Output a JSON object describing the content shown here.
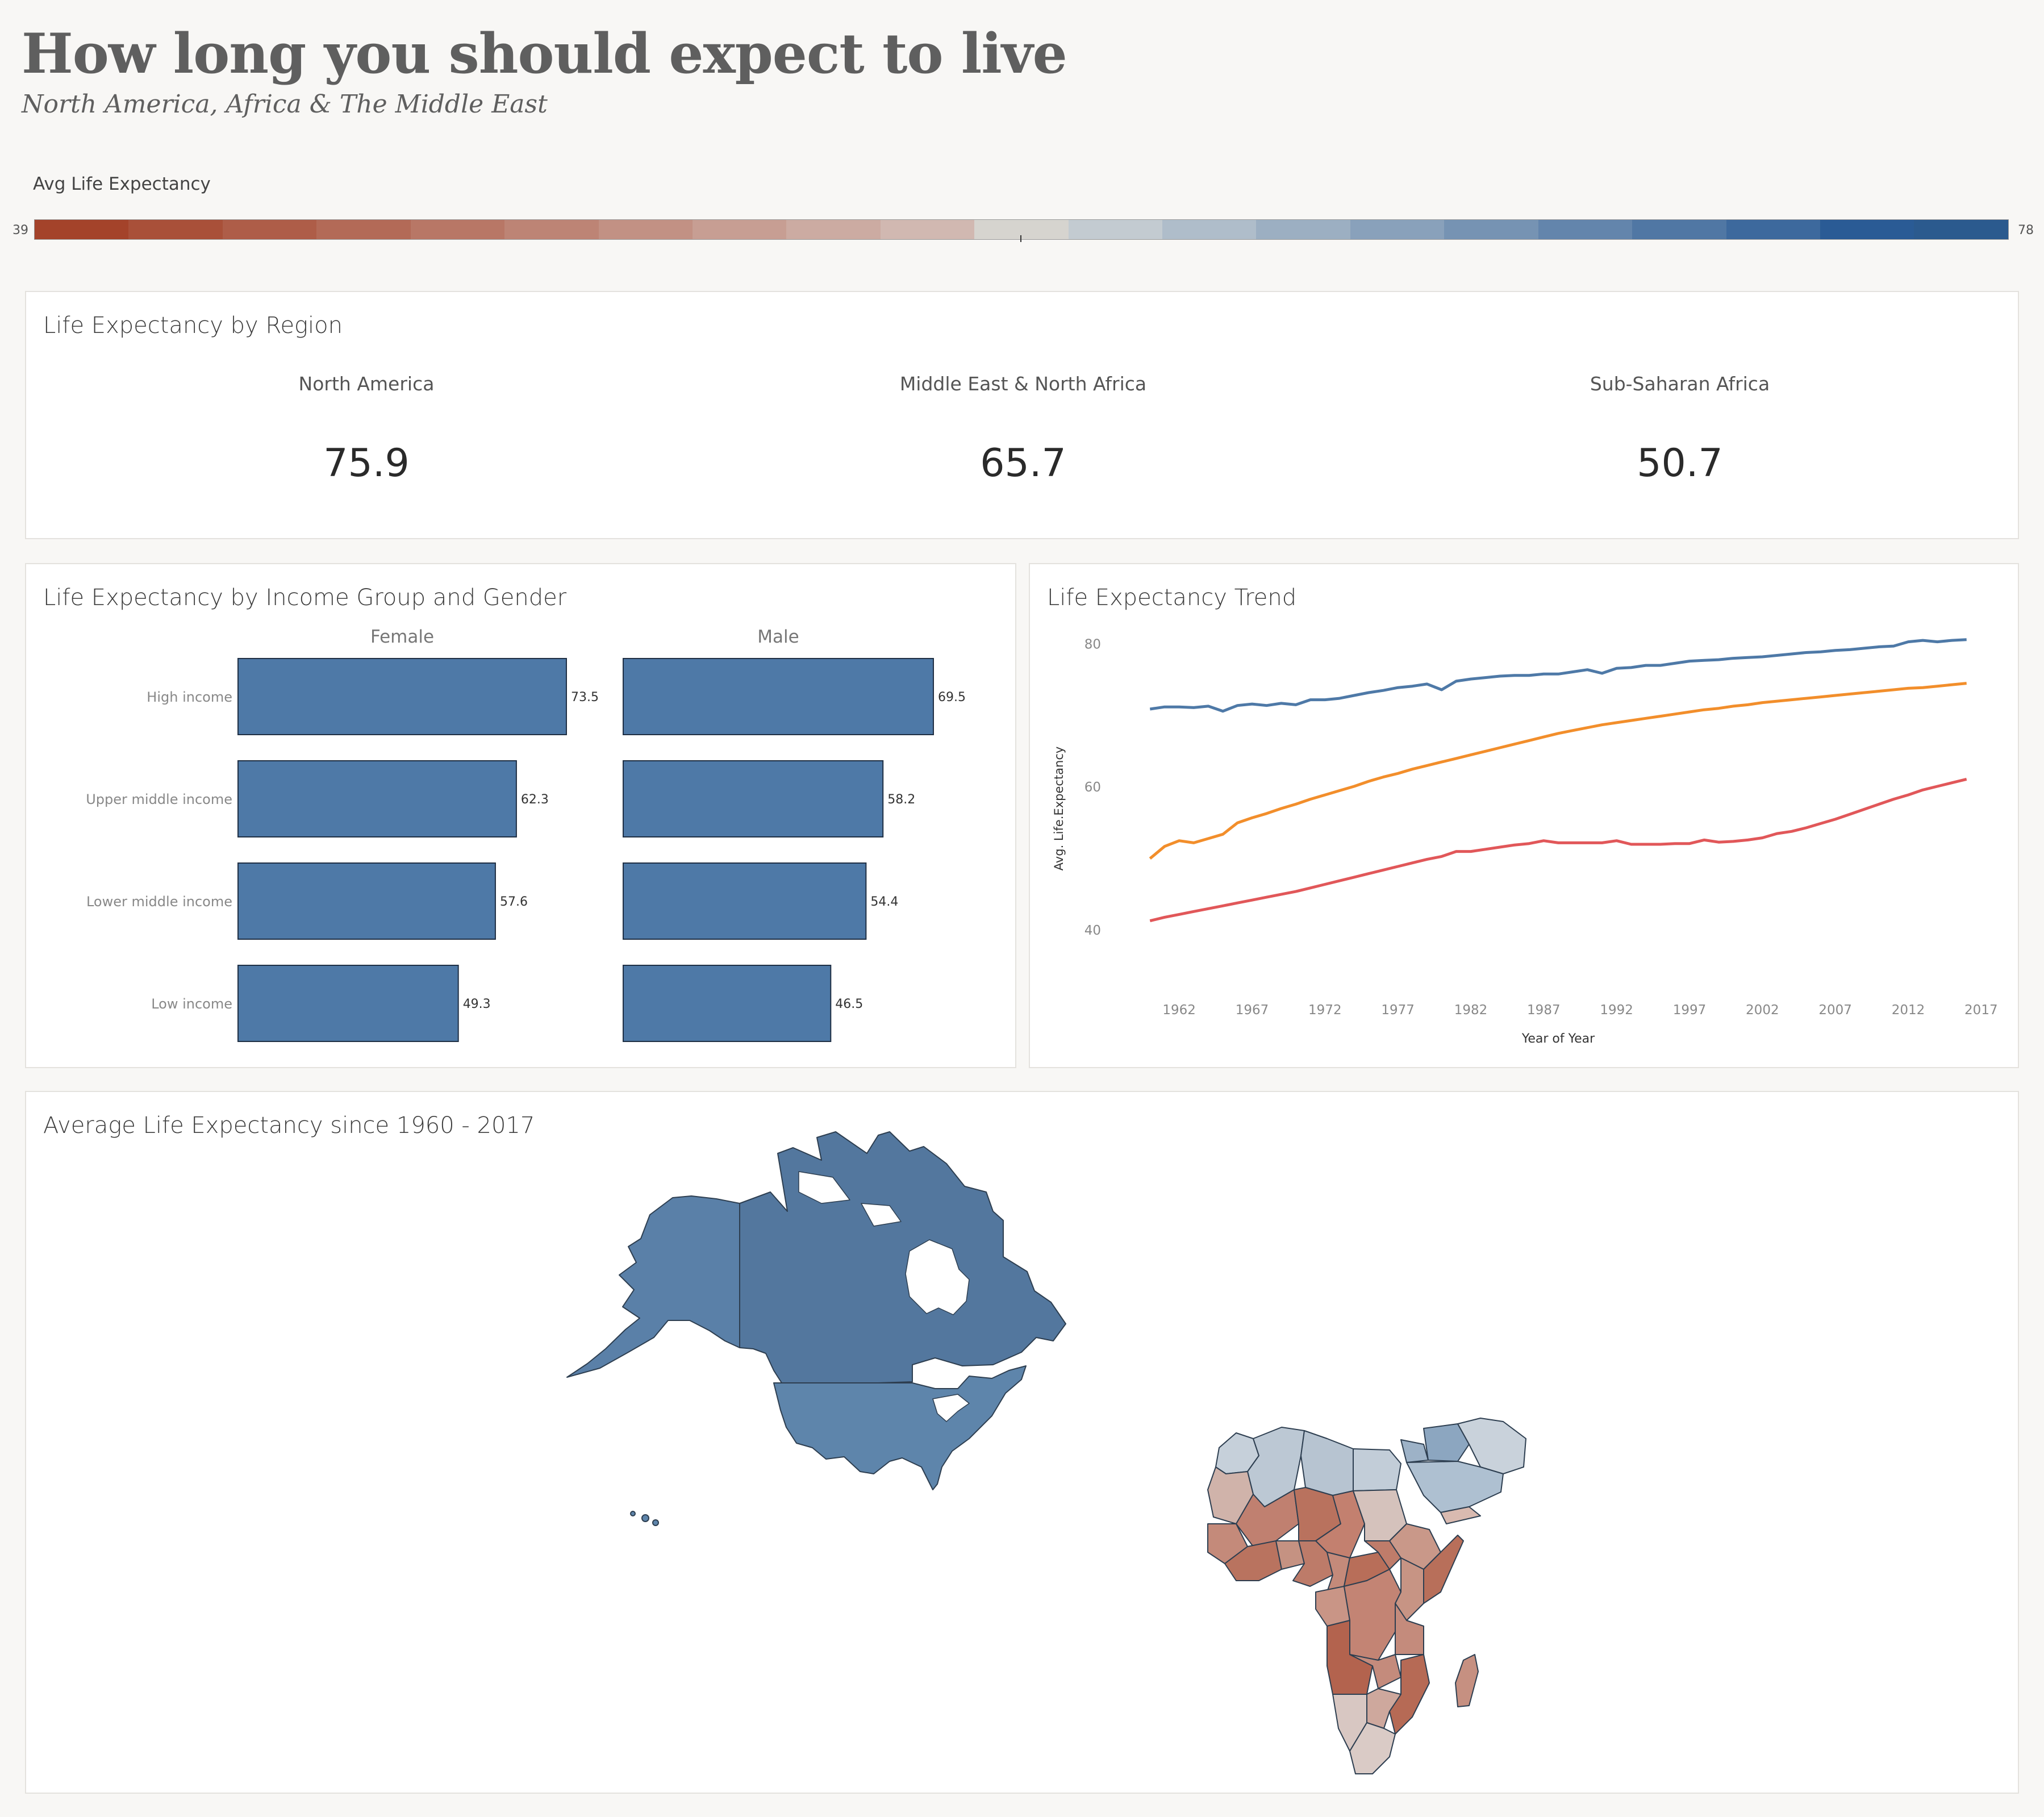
{
  "header": {
    "title": "How long you should expect to live",
    "subtitle": "North America, Africa & The Middle East"
  },
  "legend": {
    "title": "Avg Life Expectancy",
    "min": "39",
    "max": "78",
    "colors": [
      "#a4432a",
      "#a95039",
      "#ae5d48",
      "#b36a57",
      "#b87766",
      "#bd8475",
      "#c29184",
      "#c79e93",
      "#ccaba2",
      "#d1b8b1",
      "#d6d4cf",
      "#c3cbd1",
      "#afbdca",
      "#9cafc2",
      "#89a1bb",
      "#7693b3",
      "#6385ac",
      "#5077a4",
      "#3d699d",
      "#2a5b95",
      "#2b5a8e"
    ]
  },
  "kpi": {
    "title": "Life Expectancy by Region",
    "regions": [
      {
        "label": "North America",
        "value": "75.9"
      },
      {
        "label": "Middle East & North Africa",
        "value": "65.7"
      },
      {
        "label": "Sub-Saharan Africa",
        "value": "50.7"
      }
    ]
  },
  "bars_panel": {
    "title": "Life Expectancy by Income Group and Gender"
  },
  "trend_panel": {
    "title": "Life Expectancy Trend"
  },
  "map_panel": {
    "title": "Average Life Expectancy since 1960 - 2017"
  },
  "chart_data": [
    {
      "type": "bar",
      "orientation": "horizontal",
      "categories": [
        "High income",
        "Upper middle income",
        "Lower middle income",
        "Low income"
      ],
      "series": [
        {
          "name": "Female",
          "values": [
            73.5,
            62.3,
            57.6,
            49.3
          ]
        },
        {
          "name": "Male",
          "values": [
            69.5,
            58.2,
            54.4,
            46.5
          ]
        }
      ],
      "value_labels": {
        "Female": [
          "73.5",
          "62.3",
          "57.6",
          "49.3"
        ],
        "Male": [
          "69.5",
          "58.2",
          "54.4",
          "46.5"
        ]
      },
      "xlim": [
        0,
        73.5
      ],
      "bar_color": "#4e79a7"
    },
    {
      "type": "line",
      "xlabel": "Year of Year",
      "ylabel": "Avg. Life.Expectancy",
      "x_ticks": [
        "1962",
        "1967",
        "1972",
        "1977",
        "1982",
        "1987",
        "1992",
        "1997",
        "2002",
        "2007",
        "2012",
        "2017"
      ],
      "y_ticks": [
        "40",
        "60",
        "80"
      ],
      "ylim": [
        30,
        84
      ],
      "xlim": [
        1958,
        2018
      ],
      "x": [
        1960,
        1961,
        1962,
        1963,
        1964,
        1965,
        1966,
        1967,
        1968,
        1969,
        1970,
        1971,
        1972,
        1973,
        1974,
        1975,
        1976,
        1977,
        1978,
        1979,
        1980,
        1981,
        1982,
        1983,
        1984,
        1985,
        1986,
        1987,
        1988,
        1989,
        1990,
        1991,
        1992,
        1993,
        1994,
        1995,
        1996,
        1997,
        1998,
        1999,
        2000,
        2001,
        2002,
        2003,
        2004,
        2005,
        2006,
        2007,
        2008,
        2009,
        2010,
        2011,
        2012,
        2013,
        2014,
        2015,
        2016
      ],
      "series": [
        {
          "color": "#4e79a7",
          "values": [
            70.9,
            71.2,
            71.2,
            71.1,
            71.3,
            70.6,
            71.4,
            71.6,
            71.4,
            71.7,
            71.5,
            72.2,
            72.2,
            72.4,
            72.8,
            73.2,
            73.5,
            73.9,
            74.1,
            74.4,
            73.6,
            74.8,
            75.1,
            75.3,
            75.5,
            75.6,
            75.6,
            75.8,
            75.8,
            76.1,
            76.4,
            75.9,
            76.6,
            76.7,
            77.0,
            77.0,
            77.3,
            77.6,
            77.7,
            77.8,
            78.0,
            78.1,
            78.2,
            78.4,
            78.6,
            78.8,
            78.9,
            79.1,
            79.2,
            79.4,
            79.6,
            79.7,
            80.3,
            80.5,
            80.3,
            80.5,
            80.6
          ]
        },
        {
          "color": "#f28e2b",
          "values": [
            50.0,
            51.7,
            52.5,
            52.2,
            52.8,
            53.4,
            55.0,
            55.7,
            56.3,
            57.0,
            57.6,
            58.3,
            58.9,
            59.5,
            60.1,
            60.8,
            61.4,
            61.9,
            62.5,
            63.0,
            63.5,
            64.0,
            64.5,
            65.0,
            65.5,
            66.0,
            66.5,
            67.0,
            67.5,
            67.9,
            68.3,
            68.7,
            69.0,
            69.3,
            69.6,
            69.9,
            70.2,
            70.5,
            70.8,
            71.0,
            71.3,
            71.5,
            71.8,
            72.0,
            72.2,
            72.4,
            72.6,
            72.8,
            73.0,
            73.2,
            73.4,
            73.6,
            73.8,
            73.9,
            74.1,
            74.3,
            74.5
          ]
        },
        {
          "color": "#e15759",
          "values": [
            41.3,
            41.8,
            42.2,
            42.6,
            43.0,
            43.4,
            43.8,
            44.2,
            44.6,
            45.0,
            45.4,
            45.9,
            46.4,
            46.9,
            47.4,
            47.9,
            48.4,
            48.9,
            49.4,
            49.9,
            50.3,
            51.0,
            51.0,
            51.3,
            51.6,
            51.9,
            52.1,
            52.5,
            52.2,
            52.2,
            52.2,
            52.2,
            52.5,
            52.0,
            52.0,
            52.0,
            52.1,
            52.1,
            52.6,
            52.3,
            52.4,
            52.6,
            52.9,
            53.5,
            53.8,
            54.3,
            54.9,
            55.5,
            56.2,
            56.9,
            57.6,
            58.3,
            58.9,
            59.6,
            60.1,
            60.6,
            61.1
          ]
        }
      ]
    }
  ]
}
